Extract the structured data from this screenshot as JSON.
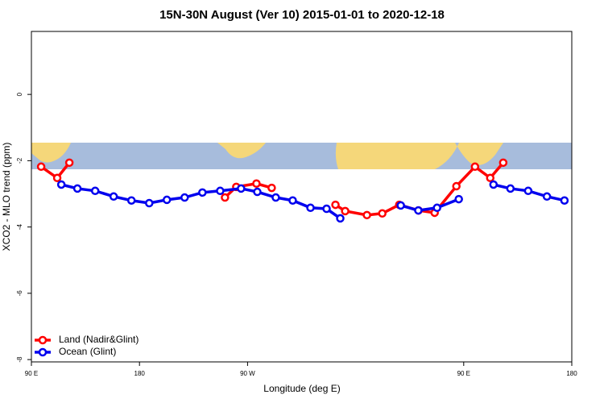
{
  "chart_data": {
    "type": "line",
    "title": "15N-30N August (Ver 10)   2015-01-01 to 2020-12-18",
    "x_label": "Longitude (deg E)",
    "y_label": "XCO2 - MLO trend (ppm)",
    "xlim": [
      90,
      540
    ],
    "ylim": [
      -8.07,
      1.9
    ],
    "xticks": [
      {
        "value": 90,
        "label": "90 E"
      },
      180,
      {
        "value": 270,
        "label": "90 W"
      },
      {
        "value": 450,
        "label": "90 E"
      },
      {
        "value": 540,
        "label": "180"
      }
    ],
    "yticks": [
      0,
      -2,
      -4,
      -6,
      -8
    ],
    "legend": "bottom-left",
    "series": [
      {
        "name": "Land (Nadir&Glint)",
        "color": "#ff0000",
        "x": [
          98.1,
          111.5,
          121.6,
          null,
          251.2,
          260.6,
          277.4,
          290.1,
          null,
          343.2,
          351.3,
          369.4,
          382.2,
          396.3,
          412.4,
          425.8,
          443.9,
          459.4,
          472.1,
          482.9
        ],
        "values": [
          -2.18,
          -2.52,
          -2.06,
          null,
          -3.11,
          -2.79,
          -2.69,
          -2.82,
          null,
          -3.33,
          -3.52,
          -3.64,
          -3.59,
          -3.33,
          -3.5,
          -3.57,
          -2.77,
          -2.18,
          -2.52,
          -2.06
        ]
      },
      {
        "name": "Ocean (Glint)",
        "color": "#0000ee",
        "x": [
          114.9,
          128.3,
          143.1,
          158.5,
          173.3,
          188.1,
          202.8,
          217.6,
          232.4,
          247.2,
          264.6,
          278.1,
          293.5,
          307.6,
          322.4,
          335.8,
          347.2,
          null,
          397.6,
          412.2,
          427.8,
          445.9,
          null,
          474.8,
          488.9,
          503.7,
          519.3,
          533.9
        ],
        "values": [
          -2.72,
          -2.84,
          -2.91,
          -3.08,
          -3.2,
          -3.28,
          -3.18,
          -3.11,
          -2.96,
          -2.91,
          -2.84,
          -2.94,
          -3.11,
          -3.2,
          -3.42,
          -3.45,
          -3.74,
          null,
          -3.35,
          -3.5,
          -3.42,
          -3.16,
          null,
          -2.72,
          -2.84,
          -2.91,
          -3.08,
          -3.2
        ]
      }
    ]
  }
}
